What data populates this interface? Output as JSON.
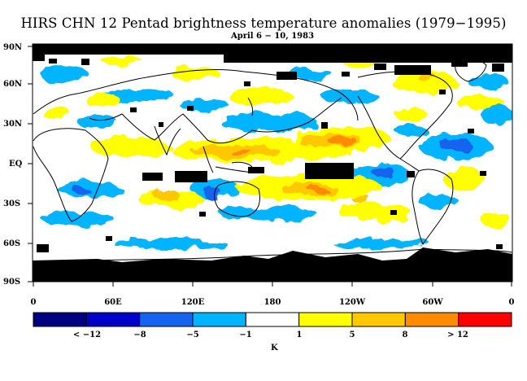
{
  "title": "HIRS CHN 12 Pentad brightness temperature anomalies (1979−1995)",
  "subtitle": "April 6 − 10, 1983",
  "lat_labels": [
    "90N",
    "60N",
    "30N",
    "EQ",
    "30S",
    "60S",
    "90S"
  ],
  "lon_labels": [
    "0",
    "60E",
    "120E",
    "180",
    "120W",
    "60W",
    "0"
  ],
  "colorbar": {
    "colors": [
      "#000080",
      "#0000c8",
      "#1464f0",
      "#00b4ff",
      "#ffffff",
      "#ffff00",
      "#ffc800",
      "#ff8c00",
      "#ff0000"
    ],
    "labels": [
      "< −12",
      "−8",
      "−5",
      "−1",
      "1",
      "5",
      "8",
      "> 12"
    ],
    "unit": "K"
  },
  "map_colors": {
    "missing": "#000000",
    "land_outline": "#000000"
  }
}
